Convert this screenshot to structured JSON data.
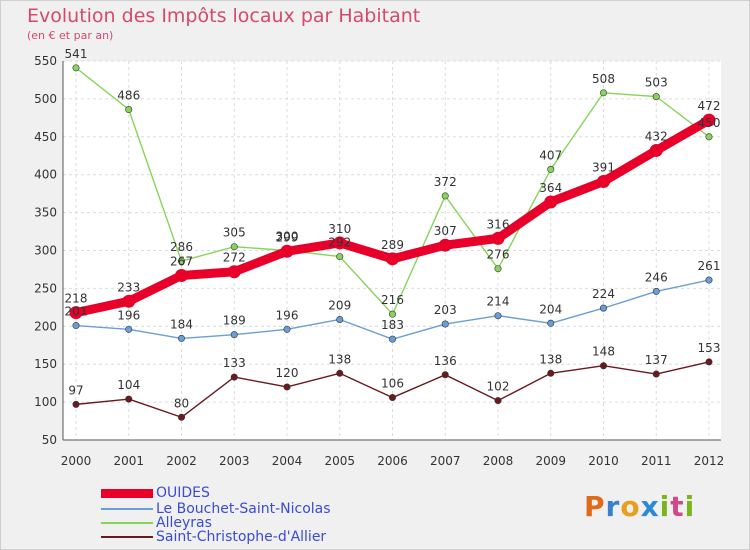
{
  "title": "Evolution des Impôts locaux par Habitant",
  "subtitle": "(en € et par an)",
  "brand": {
    "parts": [
      "P",
      "r",
      "o",
      "x",
      "i",
      "t",
      "i"
    ]
  },
  "chart_data": {
    "type": "line",
    "categories": [
      "2000",
      "2001",
      "2002",
      "2003",
      "2004",
      "2005",
      "2006",
      "2007",
      "2008",
      "2009",
      "2010",
      "2011",
      "2012"
    ],
    "ylim": [
      50,
      550
    ],
    "yticks": [
      50,
      100,
      150,
      200,
      250,
      300,
      350,
      400,
      450,
      500,
      550
    ],
    "grid": true,
    "legend_position": "bottom-left",
    "series": [
      {
        "name": "OUIDES",
        "color": "#e8002a",
        "values": [
          218,
          233,
          267,
          272,
          299,
          310,
          289,
          307,
          316,
          364,
          391,
          432,
          472
        ]
      },
      {
        "name": "Le Bouchet-Saint-Nicolas",
        "color": "#6a9ed6",
        "values": [
          201,
          196,
          184,
          189,
          196,
          209,
          183,
          203,
          214,
          204,
          224,
          246,
          261
        ]
      },
      {
        "name": "Alleyras",
        "color": "#88d45a",
        "values": [
          541,
          486,
          286,
          305,
          300,
          292,
          216,
          372,
          276,
          407,
          508,
          503,
          450
        ]
      },
      {
        "name": "Saint-Christophe-d'Allier",
        "color": "#6a1a1f",
        "values": [
          97,
          104,
          80,
          133,
          120,
          138,
          106,
          136,
          102,
          138,
          148,
          137,
          153
        ]
      }
    ]
  }
}
